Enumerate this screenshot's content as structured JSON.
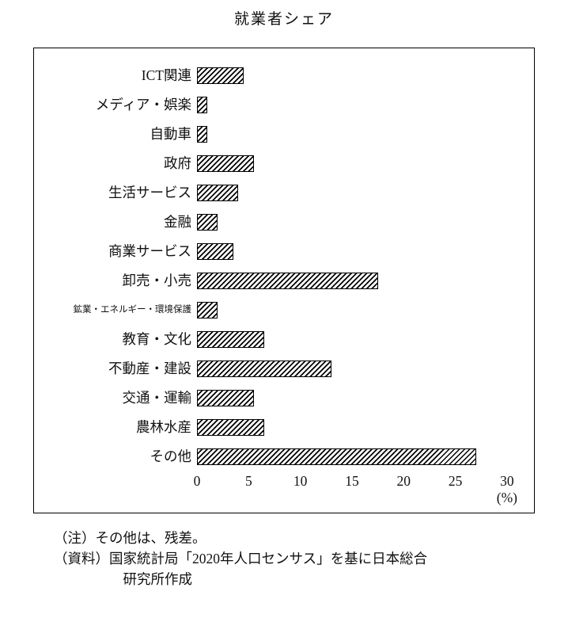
{
  "title": "就業者シェア",
  "chart_data": {
    "type": "bar",
    "orientation": "horizontal",
    "title": "就業者シェア",
    "categories": [
      "ICT関連",
      "メディア・娯楽",
      "自動車",
      "政府",
      "生活サービス",
      "金融",
      "商業サービス",
      "卸売・小売",
      "鉱業・エネルギー・環境保護",
      "教育・文化",
      "不動産・建設",
      "交通・運輸",
      "農林水産",
      "その他"
    ],
    "values": [
      4.5,
      1.0,
      1.0,
      5.5,
      4.0,
      2.0,
      3.5,
      17.5,
      2.0,
      6.5,
      13.0,
      5.5,
      6.5,
      27.0
    ],
    "xlabel": "(%)",
    "xlim": [
      0,
      32
    ],
    "xticks": [
      0,
      5,
      10,
      15,
      20,
      25,
      30
    ],
    "xunit": "(%)",
    "grid": false,
    "legend": "none",
    "bar_fill": "diagonal-hatch",
    "bar_color": "#000000",
    "background": "#ffffff"
  },
  "notes": {
    "note1": "（注）その他は、残差。",
    "note2": "（資料）国家統計局「2020年人口センサス」を基に日本総合",
    "note3": "研究所作成"
  }
}
